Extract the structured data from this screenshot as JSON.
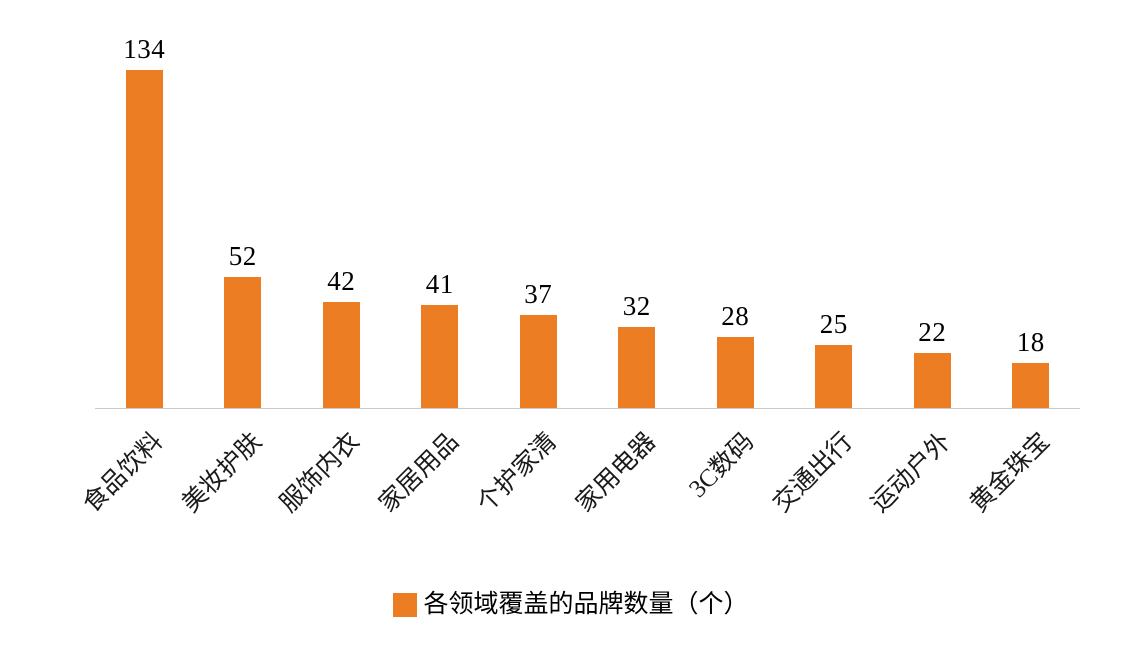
{
  "chart_data": {
    "type": "bar",
    "categories": [
      "食品饮料",
      "美妆护肤",
      "服饰内衣",
      "家居用品",
      "个护家清",
      "家用电器",
      "3C数码",
      "交通出行",
      "运动户外",
      "黄金珠宝"
    ],
    "values": [
      134,
      52,
      42,
      41,
      37,
      32,
      28,
      25,
      22,
      18
    ],
    "title": "",
    "xlabel": "",
    "ylabel": "",
    "ylim": [
      0,
      140
    ],
    "grid": false,
    "legend_position": "bottom",
    "legend_entries": [
      "各领域覆盖的品牌数量（个）"
    ]
  },
  "legend": {
    "label": "各领域覆盖的品牌数量（个）"
  },
  "colors": {
    "bar": "#ED7D23",
    "axis": "#c9c9c9",
    "text": "#000000"
  }
}
